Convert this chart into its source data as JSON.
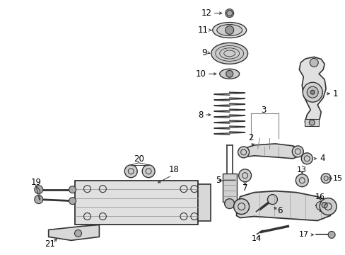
{
  "background_color": "#ffffff",
  "figsize": [
    4.89,
    3.6
  ],
  "dpi": 100,
  "text_color": "#000000",
  "draw_color": "#333333",
  "label_fontsize": 8.5
}
